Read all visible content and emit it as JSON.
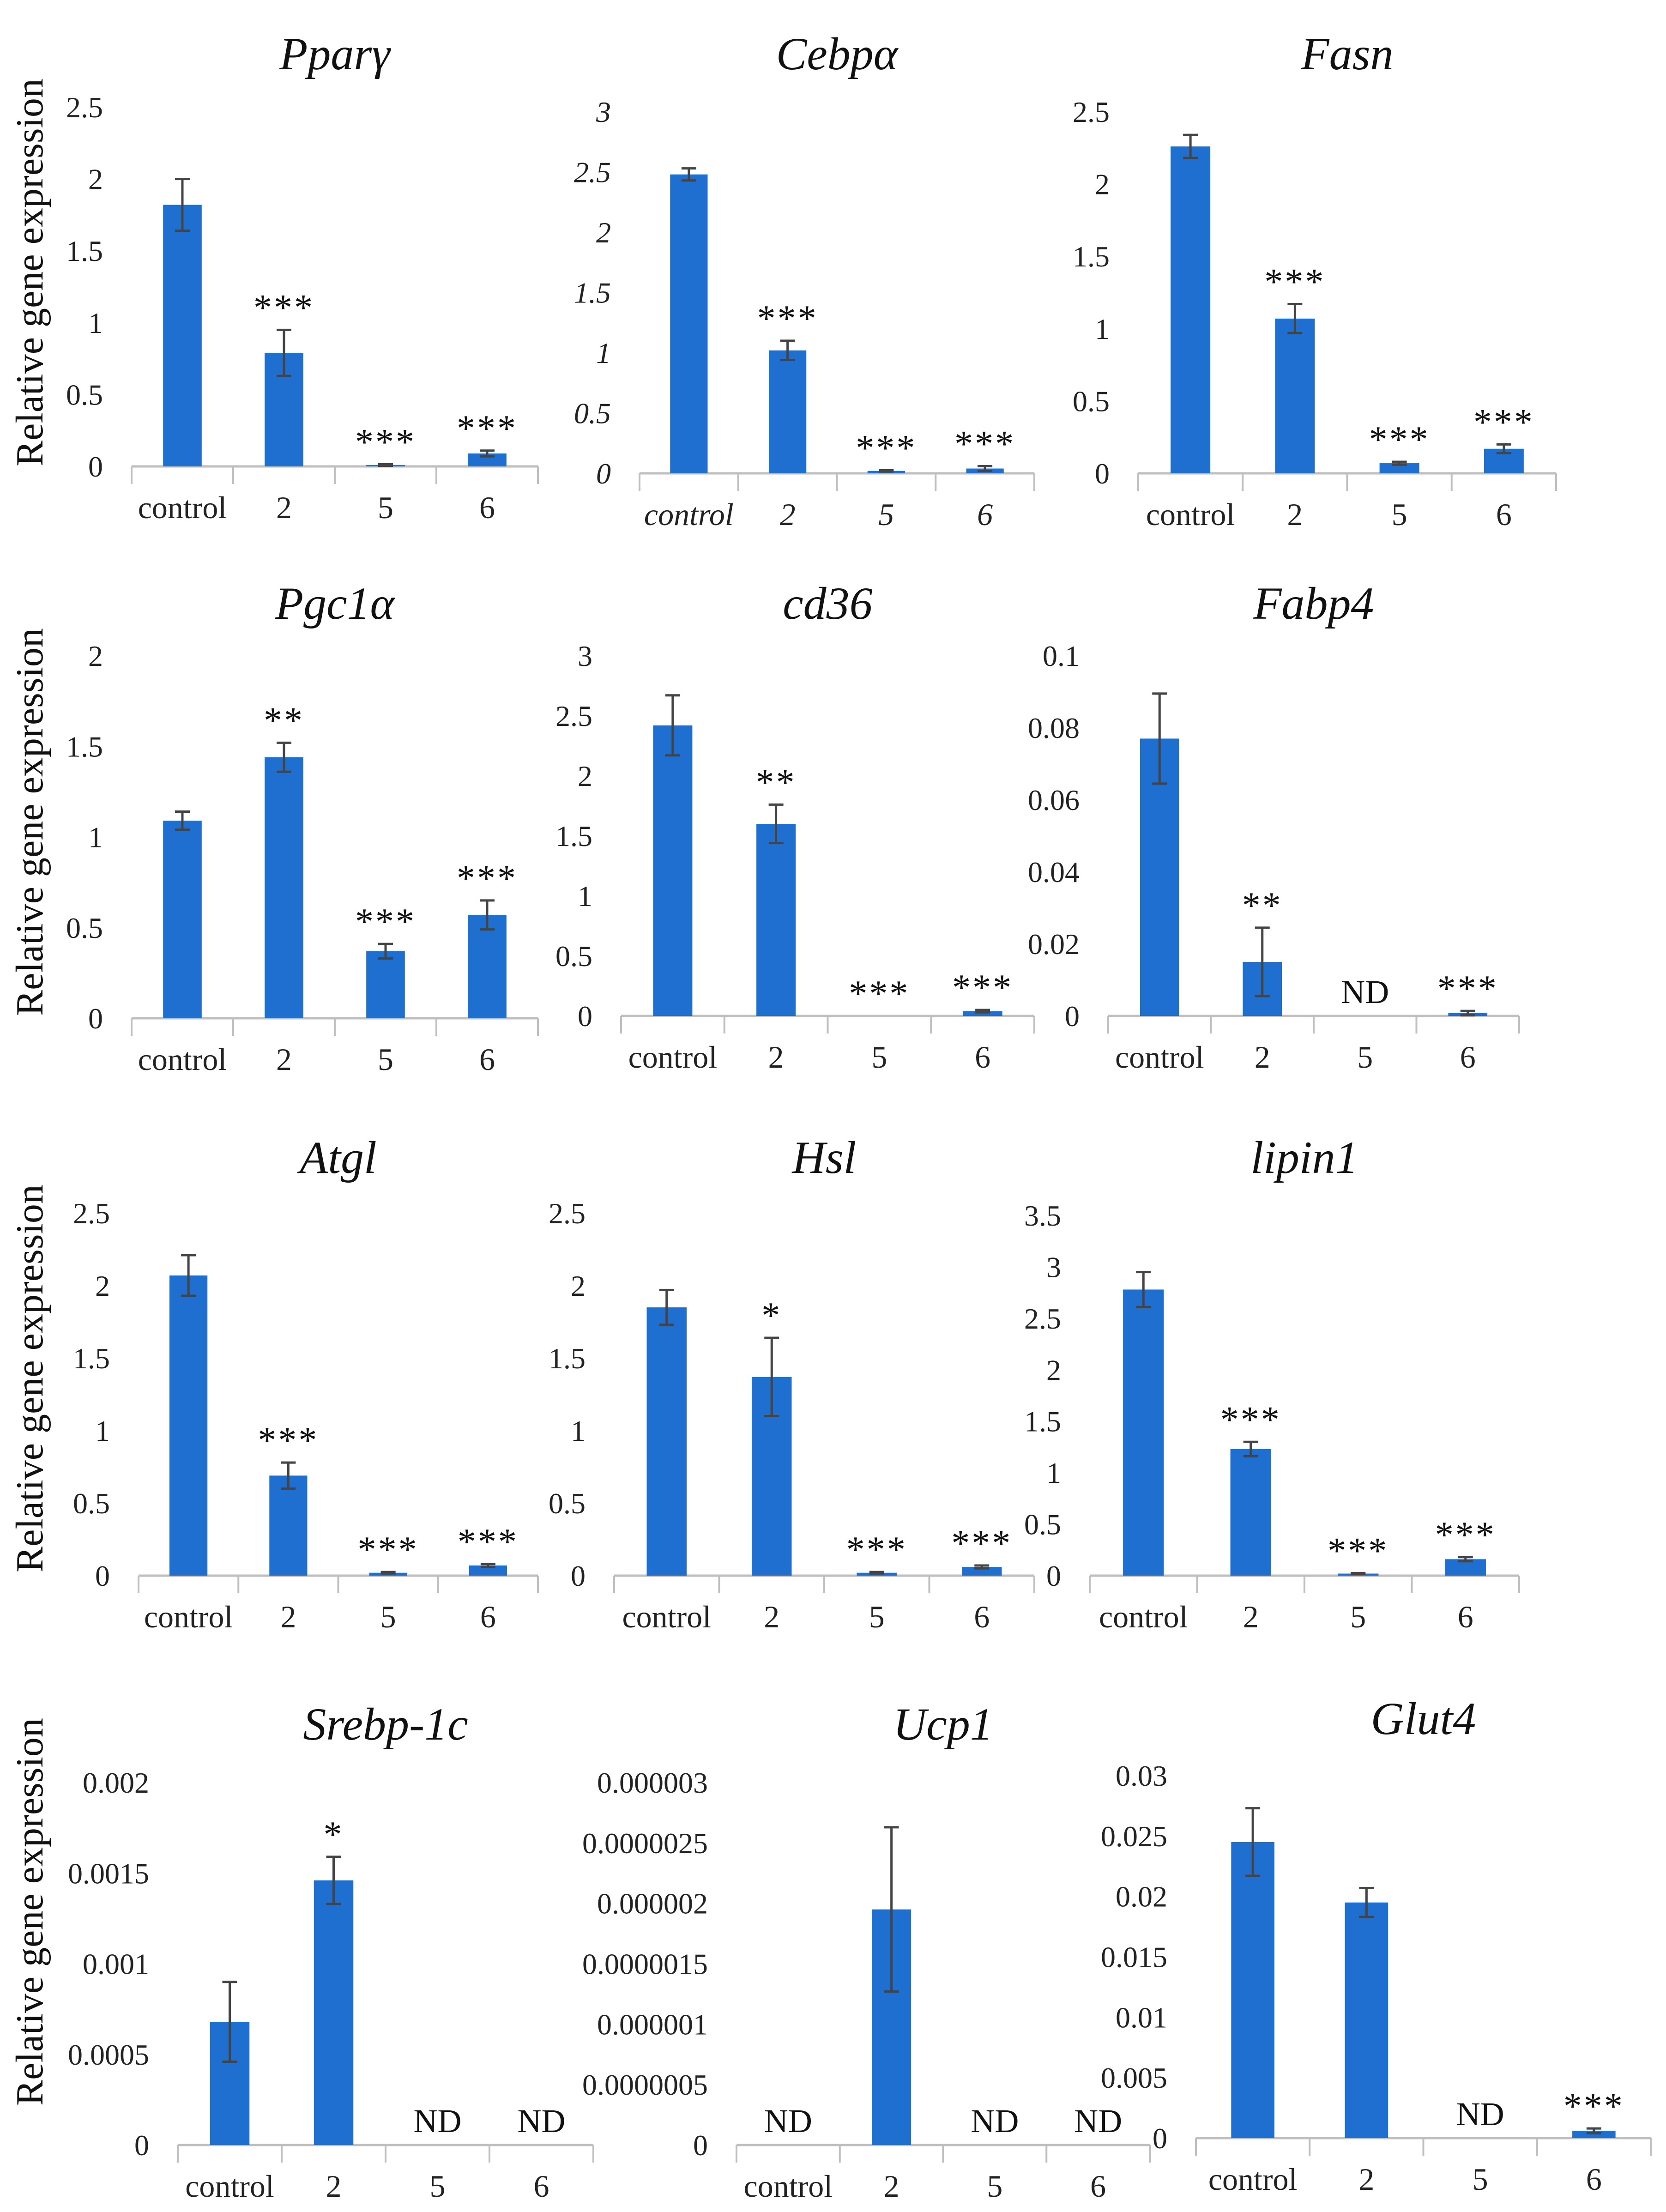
{
  "figure": {
    "ylabel": "Relative gene expression",
    "bar_color": "#1f6fd1",
    "axis_color": "#bfbfbf",
    "text_color": "#222222"
  },
  "chart_data": [
    {
      "type": "bar",
      "title": "Pparγ",
      "ylabel": "Relative gene expression",
      "categories": [
        "control",
        "2",
        "5",
        "6"
      ],
      "values": [
        1.82,
        0.79,
        0.01,
        0.09
      ],
      "errors": [
        0.18,
        0.16,
        0.005,
        0.02
      ],
      "annotations": [
        "",
        "***",
        "***",
        "***"
      ],
      "ylim": [
        0,
        2.5
      ],
      "yticks": [
        "0",
        "0.5",
        "1",
        "1.5",
        "2",
        "2.5"
      ],
      "italic_ticks": false
    },
    {
      "type": "bar",
      "title": "Cebpα",
      "ylabel": "",
      "categories": [
        "control",
        "2",
        "5",
        "6"
      ],
      "values": [
        2.48,
        1.02,
        0.02,
        0.04
      ],
      "errors": [
        0.05,
        0.08,
        0.005,
        0.02
      ],
      "annotations": [
        "",
        "***",
        "***",
        "***"
      ],
      "ylim": [
        0,
        3
      ],
      "yticks": [
        "0",
        "0.5",
        "1",
        "1.5",
        "2",
        "2.5",
        "3"
      ],
      "italic_ticks": true
    },
    {
      "type": "bar",
      "title": "Fasn",
      "ylabel": "",
      "categories": [
        "control",
        "2",
        "5",
        "6"
      ],
      "values": [
        2.26,
        1.07,
        0.07,
        0.17
      ],
      "errors": [
        0.08,
        0.1,
        0.01,
        0.03
      ],
      "annotations": [
        "",
        "***",
        "***",
        "***"
      ],
      "ylim": [
        0,
        2.5
      ],
      "yticks": [
        "0",
        "0.5",
        "1",
        "1.5",
        "2",
        "2.5"
      ],
      "italic_ticks": false
    },
    {
      "type": "bar",
      "title": "Pgc1α",
      "ylabel": "Relative gene expression",
      "categories": [
        "control",
        "2",
        "5",
        "6"
      ],
      "values": [
        1.09,
        1.44,
        0.37,
        0.57
      ],
      "errors": [
        0.05,
        0.08,
        0.04,
        0.08
      ],
      "annotations": [
        "",
        "**",
        "***",
        "***"
      ],
      "ylim": [
        0,
        2
      ],
      "yticks": [
        "0",
        "0.5",
        "1",
        "1.5",
        "2"
      ],
      "italic_ticks": false
    },
    {
      "type": "bar",
      "title": "cd36",
      "ylabel": "",
      "categories": [
        "control",
        "2",
        "5",
        "6"
      ],
      "values": [
        2.42,
        1.6,
        0.0,
        0.04
      ],
      "errors": [
        0.25,
        0.16,
        0.0,
        0.01
      ],
      "annotations": [
        "",
        "**",
        "***",
        "***"
      ],
      "ylim": [
        0,
        3
      ],
      "yticks": [
        "0",
        "0.5",
        "1",
        "1.5",
        "2",
        "2.5",
        "3"
      ],
      "italic_ticks": false
    },
    {
      "type": "bar",
      "title": "Fabp4",
      "ylabel": "",
      "categories": [
        "control",
        "2",
        "5",
        "6"
      ],
      "values": [
        0.077,
        0.015,
        0,
        0.0008
      ],
      "errors": [
        0.0125,
        0.0095,
        0,
        0.0006
      ],
      "annotations": [
        "",
        "**",
        "ND",
        "***"
      ],
      "ylim": [
        0,
        0.1
      ],
      "yticks": [
        "0",
        "0.02",
        "0.04",
        "0.06",
        "0.08",
        "0.1"
      ],
      "italic_ticks": false
    },
    {
      "type": "bar",
      "title": "Atgl",
      "ylabel": "Relative gene expression",
      "categories": [
        "control",
        "2",
        "5",
        "6"
      ],
      "values": [
        2.07,
        0.69,
        0.02,
        0.07
      ],
      "errors": [
        0.14,
        0.09,
        0.005,
        0.01
      ],
      "annotations": [
        "",
        "***",
        "***",
        "***"
      ],
      "ylim": [
        0,
        2.5
      ],
      "yticks": [
        "0",
        "0.5",
        "1",
        "1.5",
        "2",
        "2.5"
      ],
      "italic_ticks": false
    },
    {
      "type": "bar",
      "title": "Hsl",
      "ylabel": "",
      "categories": [
        "control",
        "2",
        "5",
        "6"
      ],
      "values": [
        1.85,
        1.37,
        0.02,
        0.06
      ],
      "errors": [
        0.12,
        0.27,
        0.005,
        0.01
      ],
      "annotations": [
        "",
        "*",
        "***",
        "***"
      ],
      "ylim": [
        0,
        2.5
      ],
      "yticks": [
        "0",
        "0.5",
        "1",
        "1.5",
        "2",
        "2.5"
      ],
      "italic_ticks": false
    },
    {
      "type": "bar",
      "title": "lipin1",
      "ylabel": "",
      "categories": [
        "control",
        "2",
        "5",
        "6"
      ],
      "values": [
        2.78,
        1.23,
        0.02,
        0.16
      ],
      "errors": [
        0.17,
        0.07,
        0.005,
        0.02
      ],
      "annotations": [
        "",
        "***",
        "***",
        "***"
      ],
      "ylim": [
        0,
        3.5
      ],
      "yticks": [
        "0",
        "0.5",
        "1",
        "1.5",
        "2",
        "2.5",
        "3",
        "3.5"
      ],
      "italic_ticks": false
    },
    {
      "type": "bar",
      "title": "Srebp-1c",
      "ylabel": "Relative gene expression",
      "categories": [
        "control",
        "2",
        "5",
        "6"
      ],
      "values": [
        0.00068,
        0.00146,
        0,
        0
      ],
      "errors": [
        0.00022,
        0.00013,
        0,
        0
      ],
      "annotations": [
        "",
        "*",
        "ND",
        "ND"
      ],
      "ylim": [
        0,
        0.002
      ],
      "yticks": [
        "0",
        "0.0005",
        "0.001",
        "0.0015",
        "0.002"
      ],
      "italic_ticks": false
    },
    {
      "type": "bar",
      "title": "Ucp1",
      "ylabel": "",
      "categories": [
        "control",
        "2",
        "5",
        "6"
      ],
      "values": [
        0,
        1.95e-06,
        0,
        0
      ],
      "errors": [
        0,
        6.8e-07,
        0,
        0
      ],
      "annotations": [
        "ND",
        "",
        "ND",
        "ND"
      ],
      "ylim": [
        0,
        3e-06
      ],
      "yticks": [
        "0",
        "0.0000005",
        "0.000001",
        "0.0000015",
        "0.000002",
        "0.0000025",
        "0.000003"
      ],
      "italic_ticks": false
    },
    {
      "type": "bar",
      "title": "Glut4",
      "ylabel": "",
      "categories": [
        "control",
        "2",
        "5",
        "6"
      ],
      "values": [
        0.0245,
        0.0195,
        0,
        0.0006
      ],
      "errors": [
        0.0028,
        0.0012,
        0,
        0.0002
      ],
      "annotations": [
        "",
        "",
        "ND",
        "***"
      ],
      "ylim": [
        0,
        0.03
      ],
      "yticks": [
        "0",
        "0.005",
        "0.01",
        "0.015",
        "0.02",
        "0.025",
        "0.03"
      ],
      "italic_ticks": false
    }
  ]
}
